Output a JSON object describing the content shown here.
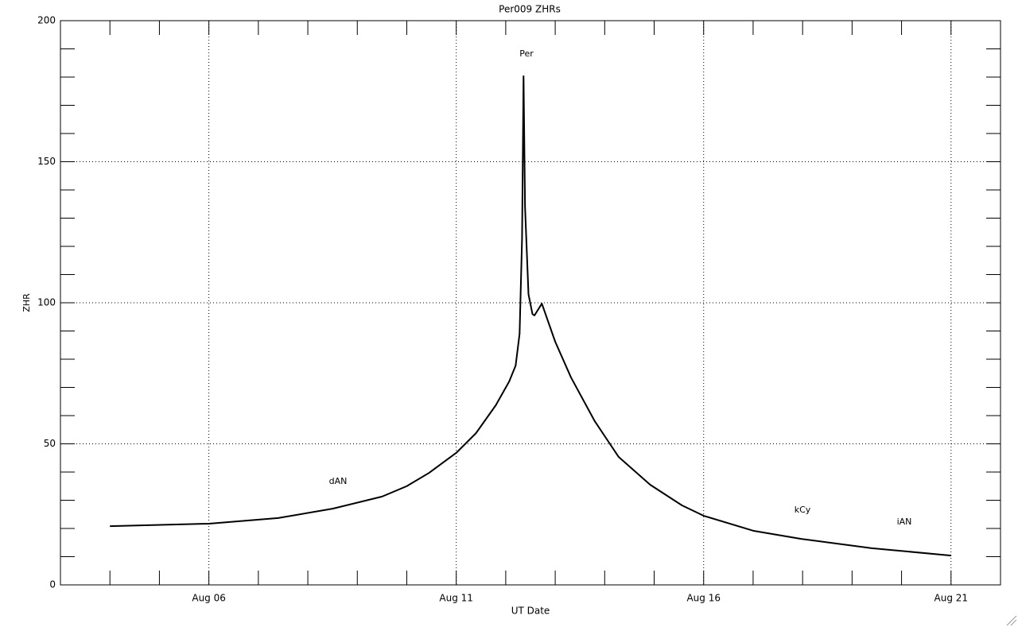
{
  "chart_data": {
    "type": "line",
    "title": "Per009 ZHRs",
    "x_label": "UT Date",
    "y_label": "ZHR",
    "xlim": [
      3,
      22
    ],
    "ylim": [
      0,
      200
    ],
    "xticks": [
      {
        "value": 6,
        "label": "Aug 06"
      },
      {
        "value": 11,
        "label": "Aug 11"
      },
      {
        "value": 16,
        "label": "Aug 16"
      },
      {
        "value": 21,
        "label": "Aug 21"
      }
    ],
    "yticks": [
      0,
      50,
      100,
      150,
      200
    ],
    "x_minor_ticks": [
      4,
      5,
      7,
      8,
      9,
      10,
      12,
      13,
      14,
      15,
      17,
      18,
      19,
      20
    ],
    "y_minor_ticks": [
      10,
      20,
      30,
      40,
      60,
      70,
      80,
      90,
      110,
      120,
      130,
      140,
      160,
      170,
      180,
      190
    ],
    "grid": true,
    "series": [
      {
        "color": "#000000",
        "x": [
          4.0,
          6.0,
          7.4,
          8.5,
          9.5,
          10.0,
          10.45,
          11.0,
          11.4,
          11.8,
          12.07,
          12.2,
          12.28,
          12.33,
          12.36,
          12.39,
          12.46,
          12.54,
          12.58,
          12.73,
          13.0,
          13.32,
          13.8,
          14.28,
          14.92,
          15.56,
          16.0,
          17.0,
          17.97,
          19.4,
          21.0
        ],
        "values": [
          20.8,
          21.7,
          23.7,
          27,
          31.3,
          35,
          39.7,
          46.8,
          53.8,
          63.7,
          72.1,
          77.7,
          89,
          122.8,
          180.3,
          134,
          103,
          96,
          95.5,
          99.7,
          86.2,
          73.5,
          58,
          45.4,
          35.5,
          28.2,
          24.5,
          19.2,
          16.3,
          13,
          10.4
        ]
      }
    ],
    "annotations": [
      "Per",
      "dAN",
      "kCy",
      "iAN"
    ]
  }
}
